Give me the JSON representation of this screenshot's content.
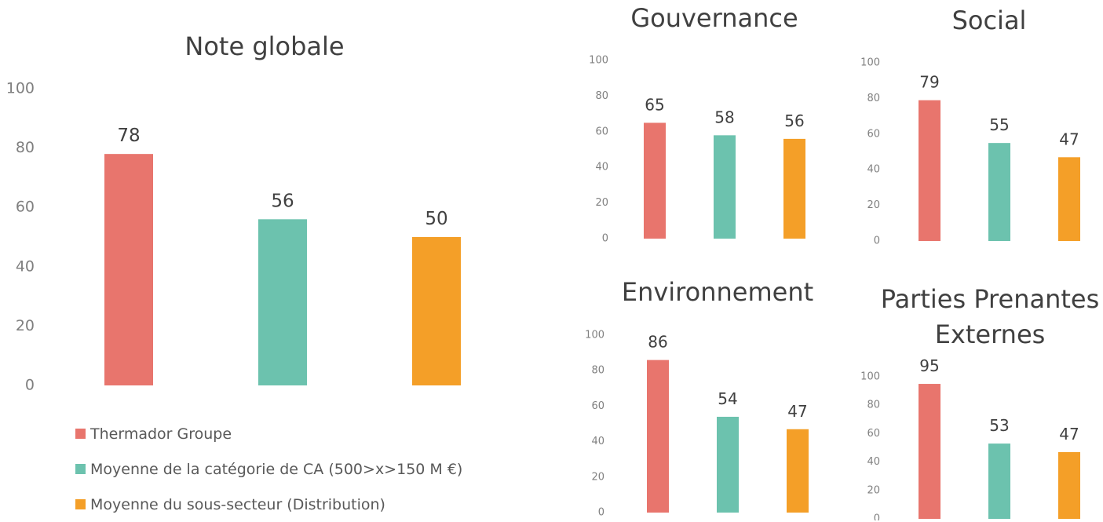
{
  "legend": [
    {
      "label": "Thermador Groupe",
      "color": "#e8756d"
    },
    {
      "label": "Moyenne de la catégorie de CA (500>x>150 M €)",
      "color": "#6cc2ae"
    },
    {
      "label": "Moyenne du sous-secteur (Distribution)",
      "color": "#f49f28"
    }
  ],
  "chart_data": [
    {
      "type": "bar",
      "title": "Note globale",
      "series_values": [
        78,
        56,
        50
      ],
      "ylim": [
        0,
        100
      ],
      "yticks": [
        "0",
        "20",
        "40",
        "60",
        "80",
        "100"
      ]
    },
    {
      "type": "bar",
      "title": "Gouvernance",
      "series_values": [
        65,
        58,
        56
      ],
      "ylim": [
        0,
        100
      ],
      "yticks": [
        "0",
        "20",
        "40",
        "60",
        "80",
        "100"
      ]
    },
    {
      "type": "bar",
      "title": "Social",
      "series_values": [
        79,
        55,
        47
      ],
      "ylim": [
        0,
        100
      ],
      "yticks": [
        "0",
        "20",
        "40",
        "60",
        "80",
        "100"
      ]
    },
    {
      "type": "bar",
      "title": "Environnement",
      "series_values": [
        86,
        54,
        47
      ],
      "ylim": [
        0,
        100
      ],
      "yticks": [
        "0",
        "20",
        "40",
        "60",
        "80",
        "100"
      ]
    },
    {
      "type": "bar",
      "title": [
        "Parties Prenantes",
        "Externes"
      ],
      "series_values": [
        95,
        53,
        47
      ],
      "ylim": [
        0,
        100
      ],
      "yticks": [
        "0",
        "20",
        "40",
        "60",
        "80",
        "100"
      ]
    }
  ]
}
